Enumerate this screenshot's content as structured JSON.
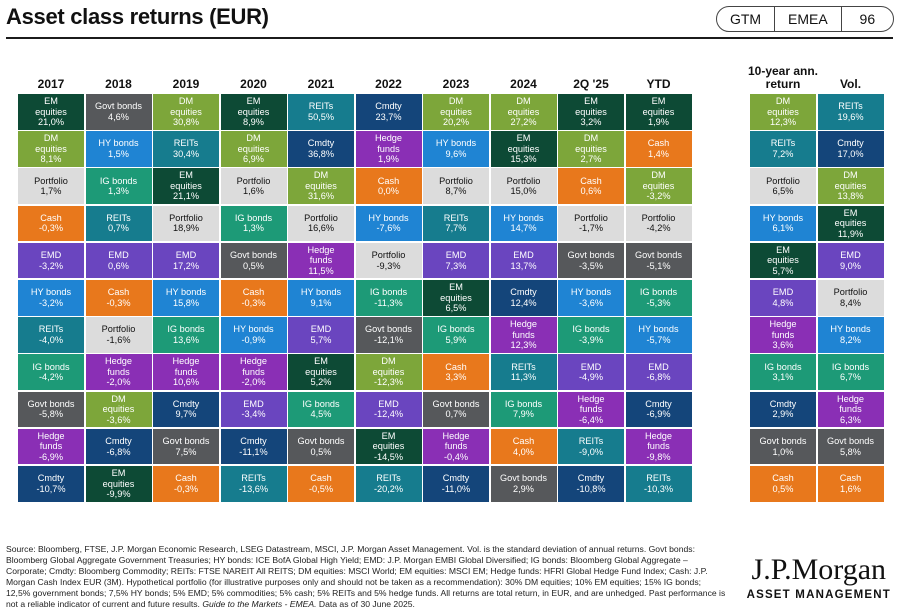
{
  "header": {
    "title": "Asset class returns (EUR)",
    "tags": [
      "GTM",
      "EMEA",
      "96"
    ]
  },
  "colors": {
    "EM equities": "#0d4a35",
    "DM equities": "#7da63a",
    "Govt bonds": "#56585b",
    "REITs": "#167c8e",
    "Cmdty": "#14457a",
    "Hedge funds": "#8a2fb5",
    "HY bonds": "#1f84d3",
    "Cash": "#e8781c",
    "Portfolio": "#dcdcdc",
    "IG bonds": "#1d9a77",
    "EMD": "#6a45bf"
  },
  "chart_data": {
    "type": "table",
    "title": "Asset class returns (EUR)",
    "columns": [
      "2017",
      "2018",
      "2019",
      "2020",
      "2021",
      "2022",
      "2023",
      "2024",
      "2Q '25",
      "YTD"
    ],
    "summary_columns": [
      "10-year ann. return",
      "Vol."
    ],
    "grid": [
      [
        {
          "name": "EM equities",
          "value": "21,0%"
        },
        {
          "name": "DM equities",
          "value": "8,1%"
        },
        {
          "name": "Portfolio",
          "value": "1,7%"
        },
        {
          "name": "Cash",
          "value": "-0,3%"
        },
        {
          "name": "EMD",
          "value": "-3,2%"
        },
        {
          "name": "HY bonds",
          "value": "-3,2%"
        },
        {
          "name": "REITs",
          "value": "-4,0%"
        },
        {
          "name": "IG bonds",
          "value": "-4,2%"
        },
        {
          "name": "Govt bonds",
          "value": "-5,8%"
        },
        {
          "name": "Hedge funds",
          "value": "-6,9%"
        },
        {
          "name": "Cmdty",
          "value": "-10,7%"
        }
      ],
      [
        {
          "name": "Govt bonds",
          "value": "4,6%"
        },
        {
          "name": "HY bonds",
          "value": "1,5%"
        },
        {
          "name": "IG bonds",
          "value": "1,3%"
        },
        {
          "name": "REITs",
          "value": "0,7%"
        },
        {
          "name": "EMD",
          "value": "0,6%"
        },
        {
          "name": "Cash",
          "value": "-0,3%"
        },
        {
          "name": "Portfolio",
          "value": "-1,6%"
        },
        {
          "name": "Hedge funds",
          "value": "-2,0%"
        },
        {
          "name": "DM equities",
          "value": "-3,6%"
        },
        {
          "name": "Cmdty",
          "value": "-6,8%"
        },
        {
          "name": "EM equities",
          "value": "-9,9%"
        }
      ],
      [
        {
          "name": "DM equities",
          "value": "30,8%"
        },
        {
          "name": "REITs",
          "value": "30,4%"
        },
        {
          "name": "EM equities",
          "value": "21,1%"
        },
        {
          "name": "Portfolio",
          "value": "18,9%"
        },
        {
          "name": "EMD",
          "value": "17,2%"
        },
        {
          "name": "HY bonds",
          "value": "15,8%"
        },
        {
          "name": "IG bonds",
          "value": "13,6%"
        },
        {
          "name": "Hedge funds",
          "value": "10,6%"
        },
        {
          "name": "Cmdty",
          "value": "9,7%"
        },
        {
          "name": "Govt bonds",
          "value": "7,5%"
        },
        {
          "name": "Cash",
          "value": "-0,3%"
        }
      ],
      [
        {
          "name": "EM equities",
          "value": "8,9%"
        },
        {
          "name": "DM equities",
          "value": "6,9%"
        },
        {
          "name": "Portfolio",
          "value": "1,6%"
        },
        {
          "name": "IG bonds",
          "value": "1,3%"
        },
        {
          "name": "Govt bonds",
          "value": "0,5%"
        },
        {
          "name": "Cash",
          "value": "-0,3%"
        },
        {
          "name": "HY bonds",
          "value": "-0,9%"
        },
        {
          "name": "Hedge funds",
          "value": "-2,0%"
        },
        {
          "name": "EMD",
          "value": "-3,4%"
        },
        {
          "name": "Cmdty",
          "value": "-11,1%"
        },
        {
          "name": "REITs",
          "value": "-13,6%"
        }
      ],
      [
        {
          "name": "REITs",
          "value": "50,5%"
        },
        {
          "name": "Cmdty",
          "value": "36,8%"
        },
        {
          "name": "DM equities",
          "value": "31,6%"
        },
        {
          "name": "Portfolio",
          "value": "16,6%"
        },
        {
          "name": "Hedge funds",
          "value": "11,5%"
        },
        {
          "name": "HY bonds",
          "value": "9,1%"
        },
        {
          "name": "EMD",
          "value": "5,7%"
        },
        {
          "name": "EM equities",
          "value": "5,2%"
        },
        {
          "name": "IG bonds",
          "value": "4,5%"
        },
        {
          "name": "Govt bonds",
          "value": "0,5%"
        },
        {
          "name": "Cash",
          "value": "-0,5%"
        }
      ],
      [
        {
          "name": "Cmdty",
          "value": "23,7%"
        },
        {
          "name": "Hedge funds",
          "value": "1,9%"
        },
        {
          "name": "Cash",
          "value": "0,0%"
        },
        {
          "name": "HY bonds",
          "value": "-7,6%"
        },
        {
          "name": "Portfolio",
          "value": "-9,3%"
        },
        {
          "name": "IG bonds",
          "value": "-11,3%"
        },
        {
          "name": "Govt bonds",
          "value": "-12,1%"
        },
        {
          "name": "DM equities",
          "value": "-12,3%"
        },
        {
          "name": "EMD",
          "value": "-12,4%"
        },
        {
          "name": "EM equities",
          "value": "-14,5%"
        },
        {
          "name": "REITs",
          "value": "-20,2%"
        }
      ],
      [
        {
          "name": "DM equities",
          "value": "20,2%"
        },
        {
          "name": "HY bonds",
          "value": "9,6%"
        },
        {
          "name": "Portfolio",
          "value": "8,7%"
        },
        {
          "name": "REITs",
          "value": "7,7%"
        },
        {
          "name": "EMD",
          "value": "7,3%"
        },
        {
          "name": "EM equities",
          "value": "6,5%"
        },
        {
          "name": "IG bonds",
          "value": "5,9%"
        },
        {
          "name": "Cash",
          "value": "3,3%"
        },
        {
          "name": "Govt bonds",
          "value": "0,7%"
        },
        {
          "name": "Hedge funds",
          "value": "-0,4%"
        },
        {
          "name": "Cmdty",
          "value": "-11,0%"
        }
      ],
      [
        {
          "name": "DM equities",
          "value": "27,2%"
        },
        {
          "name": "EM equities",
          "value": "15,3%"
        },
        {
          "name": "Portfolio",
          "value": "15,0%"
        },
        {
          "name": "HY bonds",
          "value": "14,7%"
        },
        {
          "name": "EMD",
          "value": "13,7%"
        },
        {
          "name": "Cmdty",
          "value": "12,4%"
        },
        {
          "name": "Hedge funds",
          "value": "12,3%"
        },
        {
          "name": "REITs",
          "value": "11,3%"
        },
        {
          "name": "IG bonds",
          "value": "7,9%"
        },
        {
          "name": "Cash",
          "value": "4,0%"
        },
        {
          "name": "Govt bonds",
          "value": "2,9%"
        }
      ],
      [
        {
          "name": "EM equities",
          "value": "3,2%"
        },
        {
          "name": "DM equities",
          "value": "2,7%"
        },
        {
          "name": "Cash",
          "value": "0,6%"
        },
        {
          "name": "Portfolio",
          "value": "-1,7%"
        },
        {
          "name": "Govt bonds",
          "value": "-3,5%"
        },
        {
          "name": "HY bonds",
          "value": "-3,6%"
        },
        {
          "name": "IG bonds",
          "value": "-3,9%"
        },
        {
          "name": "EMD",
          "value": "-4,9%"
        },
        {
          "name": "Hedge funds",
          "value": "-6,4%"
        },
        {
          "name": "REITs",
          "value": "-9,0%"
        },
        {
          "name": "Cmdty",
          "value": "-10,8%"
        }
      ],
      [
        {
          "name": "EM equities",
          "value": "1,9%"
        },
        {
          "name": "Cash",
          "value": "1,4%"
        },
        {
          "name": "DM equities",
          "value": "-3,2%"
        },
        {
          "name": "Portfolio",
          "value": "-4,2%"
        },
        {
          "name": "Govt bonds",
          "value": "-5,1%"
        },
        {
          "name": "IG bonds",
          "value": "-5,3%"
        },
        {
          "name": "HY bonds",
          "value": "-5,7%"
        },
        {
          "name": "EMD",
          "value": "-6,8%"
        },
        {
          "name": "Cmdty",
          "value": "-6,9%"
        },
        {
          "name": "Hedge funds",
          "value": "-9,8%"
        },
        {
          "name": "REITs",
          "value": "-10,3%"
        }
      ]
    ],
    "summary_grid": [
      [
        {
          "name": "DM equities",
          "value": "12,3%"
        },
        {
          "name": "REITs",
          "value": "7,2%"
        },
        {
          "name": "Portfolio",
          "value": "6,5%"
        },
        {
          "name": "HY bonds",
          "value": "6,1%"
        },
        {
          "name": "EM equities",
          "value": "5,7%"
        },
        {
          "name": "EMD",
          "value": "4,8%"
        },
        {
          "name": "Hedge funds",
          "value": "3,6%"
        },
        {
          "name": "IG bonds",
          "value": "3,1%"
        },
        {
          "name": "Cmdty",
          "value": "2,9%"
        },
        {
          "name": "Govt bonds",
          "value": "1,0%"
        },
        {
          "name": "Cash",
          "value": "0,5%"
        }
      ],
      [
        {
          "name": "REITs",
          "value": "19,6%"
        },
        {
          "name": "Cmdty",
          "value": "17,0%"
        },
        {
          "name": "DM equities",
          "value": "13,8%"
        },
        {
          "name": "EM equities",
          "value": "11,9%"
        },
        {
          "name": "EMD",
          "value": "9,0%"
        },
        {
          "name": "Portfolio",
          "value": "8,4%"
        },
        {
          "name": "HY bonds",
          "value": "8,2%"
        },
        {
          "name": "IG bonds",
          "value": "6,7%"
        },
        {
          "name": "Hedge funds",
          "value": "6,3%"
        },
        {
          "name": "Govt bonds",
          "value": "5,8%"
        },
        {
          "name": "Cash",
          "value": "1,6%"
        }
      ]
    ]
  },
  "footer": {
    "source_text": "Source: Bloomberg, FTSE, J.P. Morgan Economic Research, LSEG Datastream, MSCI, J.P. Morgan Asset Management. Vol. is the standard deviation of annual returns. Govt bonds: Bloomberg Global Aggregate Government Treasuries; HY bonds: ICE BofA Global High Yield; EMD: J.P. Morgan EMBI Global Diversified; IG bonds: Bloomberg Global Aggregate – Corporate; Cmdty: Bloomberg Commodity; REITs: FTSE NAREIT All REITS; DM equities: MSCI World; EM equities: MSCI EM; Hedge funds: HFRI Global Hedge Fund Index; Cash: J.P. Morgan Cash Index EUR (3M). Hypothetical portfolio (for illustrative purposes only and should not be taken as a recommendation): 30% DM equities; 10% EM equities; 15% IG bonds; 12,5% government bonds; 7,5% HY bonds; 5% EMD; 5% commodities; 5% cash; 5% REITs and 5% hedge funds. All returns are total return, in EUR, and are unhedged. Past performance is not a reliable indicator of current and future results. ",
    "source_italic": "Guide to the Markets - EMEA.",
    "source_tail": " Data as of 30 June 2025.",
    "logo_brand": "J.P.Morgan",
    "logo_sub": "ASSET MANAGEMENT"
  }
}
